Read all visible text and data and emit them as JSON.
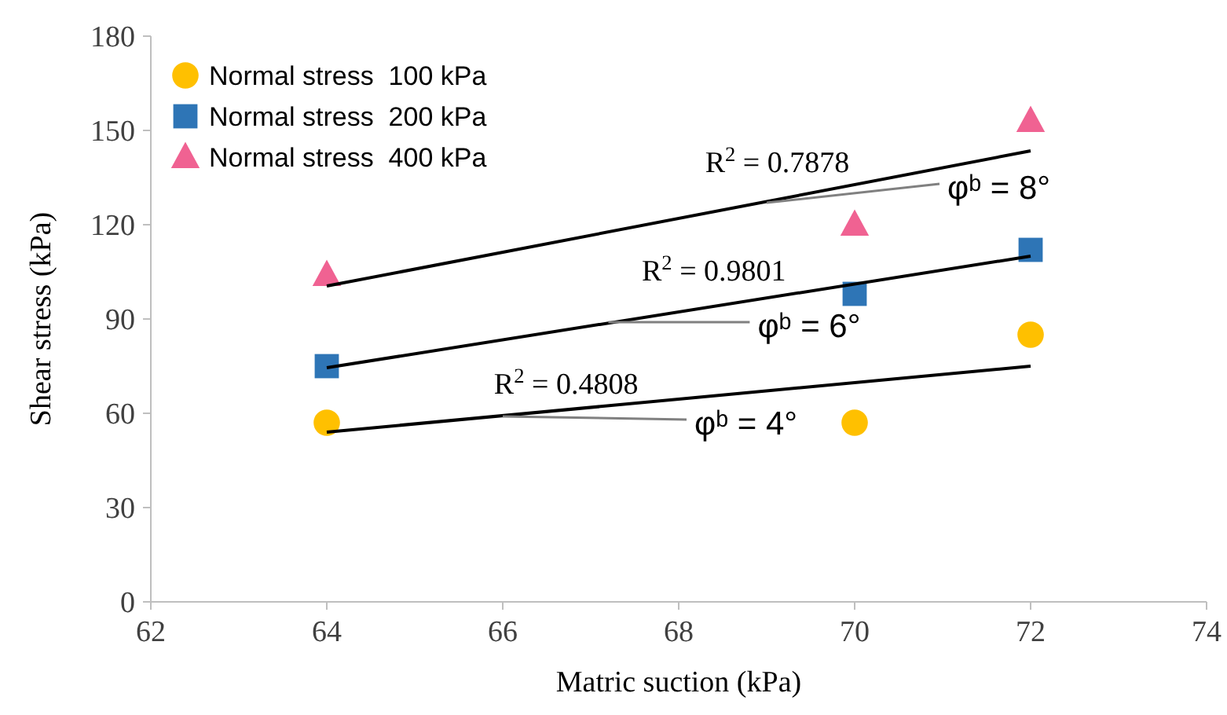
{
  "chart_data": {
    "type": "scatter",
    "xlabel": "Matric suction (kPa)",
    "ylabel": "Shear stress (kPa)",
    "xlim": [
      62,
      74
    ],
    "xticks": [
      62,
      64,
      66,
      68,
      70,
      72,
      74
    ],
    "ylim": [
      0,
      180
    ],
    "yticks": [
      0,
      30,
      60,
      90,
      120,
      150,
      180
    ],
    "grid": false,
    "legend": "top left",
    "series": [
      {
        "name": "Normal stress  100 kPa",
        "color": "#ffc000",
        "marker": "circle",
        "x": [
          64,
          70,
          72
        ],
        "values": [
          57,
          57,
          85
        ]
      },
      {
        "name": "Normal stress  200 kPa",
        "color": "#2e75b6",
        "marker": "square",
        "x": [
          64,
          70,
          72
        ],
        "values": [
          75,
          98,
          112
        ]
      },
      {
        "name": "Normal stress  400 kPa",
        "color": "#f06292",
        "marker": "triangle",
        "x": [
          64,
          70,
          72
        ],
        "values": [
          104,
          120,
          153
        ]
      },
      {
        "type": "line",
        "color": "#000000",
        "marker": "none",
        "x": [
          64,
          72
        ],
        "values": [
          54,
          75
        ]
      },
      {
        "type": "line",
        "color": "#000000",
        "marker": "none",
        "x": [
          64,
          72
        ],
        "values": [
          74.5,
          110
        ]
      },
      {
        "type": "line",
        "color": "#000000",
        "marker": "none",
        "x": [
          64,
          72
        ],
        "values": [
          100.5,
          143.5
        ]
      }
    ],
    "annotations": [
      "R$^{2}$ = 0.7878",
      "R$^{2}$ = 0.9801",
      "R$^{2}$ = 0.4808",
      {
        "text": "φᵇ = 8°",
        "x": 69,
        "y": 127
      },
      {
        "text": "φᵇ = 6°",
        "x": 67.2,
        "y": 89
      },
      {
        "text": "φᵇ = 4°",
        "x": 66,
        "y": 59
      }
    ]
  }
}
